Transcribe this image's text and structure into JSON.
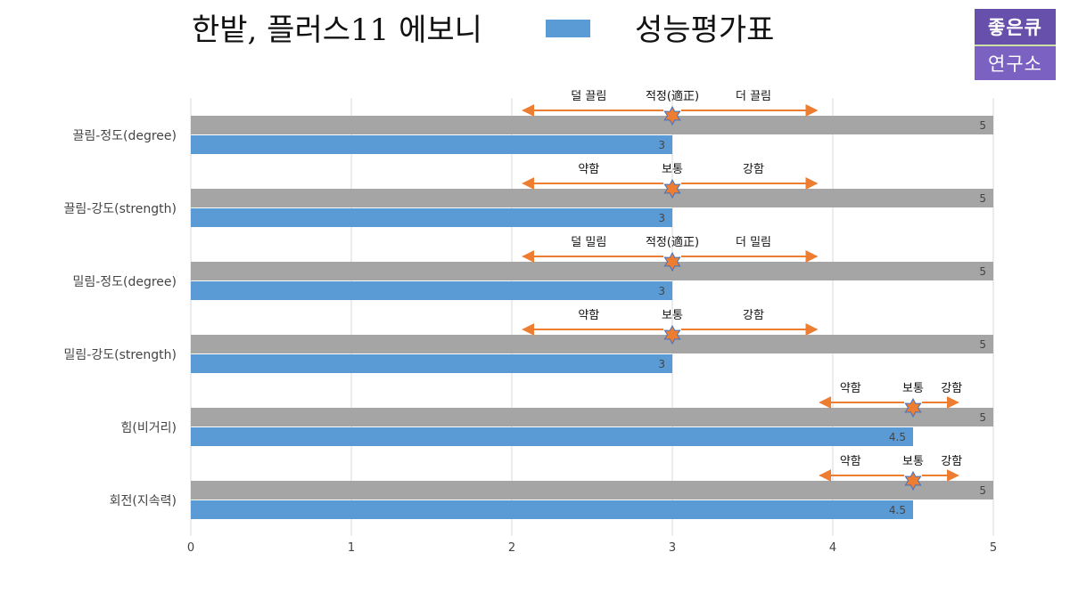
{
  "header": {
    "title": "한밭, 플러스11 에보니",
    "legend_label": "성능평가표",
    "legend_color": "#5b9bd5"
  },
  "logo": {
    "line1": "좋은큐",
    "line2": "연구소",
    "color": "#6750ac"
  },
  "chart_data": {
    "type": "bar",
    "orientation": "horizontal",
    "categories": [
      "끌림-정도(degree)",
      "끌림-강도(strength)",
      "밀림-정도(degree)",
      "밀림-강도(strength)",
      "힘(비거리)",
      "회전(지속력)"
    ],
    "series": [
      {
        "values": [
          5,
          5,
          5,
          5,
          5,
          5
        ],
        "color": "#a5a5a5"
      },
      {
        "values": [
          3,
          3,
          3,
          3,
          4.5,
          4.5
        ],
        "color": "#5b9bd5"
      }
    ],
    "xlim": [
      0,
      5
    ],
    "xticks": [
      0,
      1,
      2,
      3,
      4,
      5
    ],
    "grid": true,
    "annotations": [
      {
        "category": "끌림-정도(degree)",
        "left": "덜 끌림",
        "center": "적정(適正)",
        "right": "더 끌림",
        "marker_value": 3,
        "arrow_from": 2.07,
        "arrow_to": 3.9
      },
      {
        "category": "끌림-강도(strength)",
        "left": "약함",
        "center": "보통",
        "right": "강함",
        "marker_value": 3,
        "arrow_from": 2.07,
        "arrow_to": 3.9
      },
      {
        "category": "밀림-정도(degree)",
        "left": "덜 밀림",
        "center": "적정(適正)",
        "right": "더 밀림",
        "marker_value": 3,
        "arrow_from": 2.07,
        "arrow_to": 3.9
      },
      {
        "category": "밀림-강도(strength)",
        "left": "약함",
        "center": "보통",
        "right": "강함",
        "marker_value": 3,
        "arrow_from": 2.07,
        "arrow_to": 3.9
      },
      {
        "category": "힘(비거리)",
        "left": "약함",
        "center": "보통",
        "right": "강함",
        "marker_value": 4.5,
        "arrow_from": 3.92,
        "arrow_to": 4.78
      },
      {
        "category": "회전(지속력)",
        "left": "약함",
        "center": "보통",
        "right": "강함",
        "marker_value": 4.5,
        "arrow_from": 3.92,
        "arrow_to": 4.78
      }
    ],
    "annotation_colors": {
      "arrow": "#ed7d31",
      "star_fill": "#ed7d31",
      "star_stroke": "#4472c4"
    }
  }
}
